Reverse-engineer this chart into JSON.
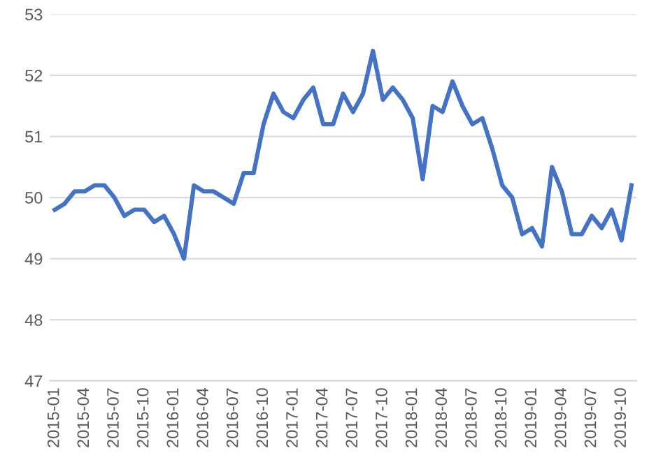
{
  "chart_data": {
    "type": "line",
    "categories": [
      "2015-01",
      null,
      null,
      "2015-04",
      null,
      null,
      "2015-07",
      null,
      null,
      "2015-10",
      null,
      null,
      "2016-01",
      null,
      null,
      "2016-04",
      null,
      null,
      "2016-07",
      null,
      null,
      "2016-10",
      null,
      null,
      "2017-01",
      null,
      null,
      "2017-04",
      null,
      null,
      "2017-07",
      null,
      null,
      "2017-10",
      null,
      null,
      "2018-01",
      null,
      null,
      "2018-04",
      null,
      null,
      "2018-07",
      null,
      null,
      "2018-10",
      null,
      null,
      "2019-01",
      null,
      null,
      "2019-04",
      null,
      null,
      "2019-07",
      null,
      null,
      "2019-10",
      null
    ],
    "series": [
      {
        "color": "#4472c4",
        "values": [
          49.8,
          49.9,
          50.1,
          50.1,
          50.2,
          50.2,
          50.0,
          49.7,
          49.8,
          49.8,
          49.6,
          49.7,
          49.4,
          49.0,
          50.2,
          50.1,
          50.1,
          50.0,
          49.9,
          50.4,
          50.4,
          51.2,
          51.7,
          51.4,
          51.3,
          51.6,
          51.8,
          51.2,
          51.2,
          51.7,
          51.4,
          51.7,
          52.4,
          51.6,
          51.8,
          51.6,
          51.3,
          50.3,
          51.5,
          51.4,
          51.9,
          51.5,
          51.2,
          51.3,
          50.8,
          50.2,
          50.0,
          49.4,
          49.5,
          49.2,
          50.5,
          50.1,
          49.4,
          49.4,
          49.7,
          49.5,
          49.8,
          49.3,
          50.2
        ]
      }
    ],
    "ylim": [
      47,
      53
    ],
    "yticks": [
      47,
      48,
      49,
      50,
      51,
      52,
      53
    ],
    "grid": "y",
    "marker": "none",
    "line_style": "solid",
    "legend": false
  }
}
